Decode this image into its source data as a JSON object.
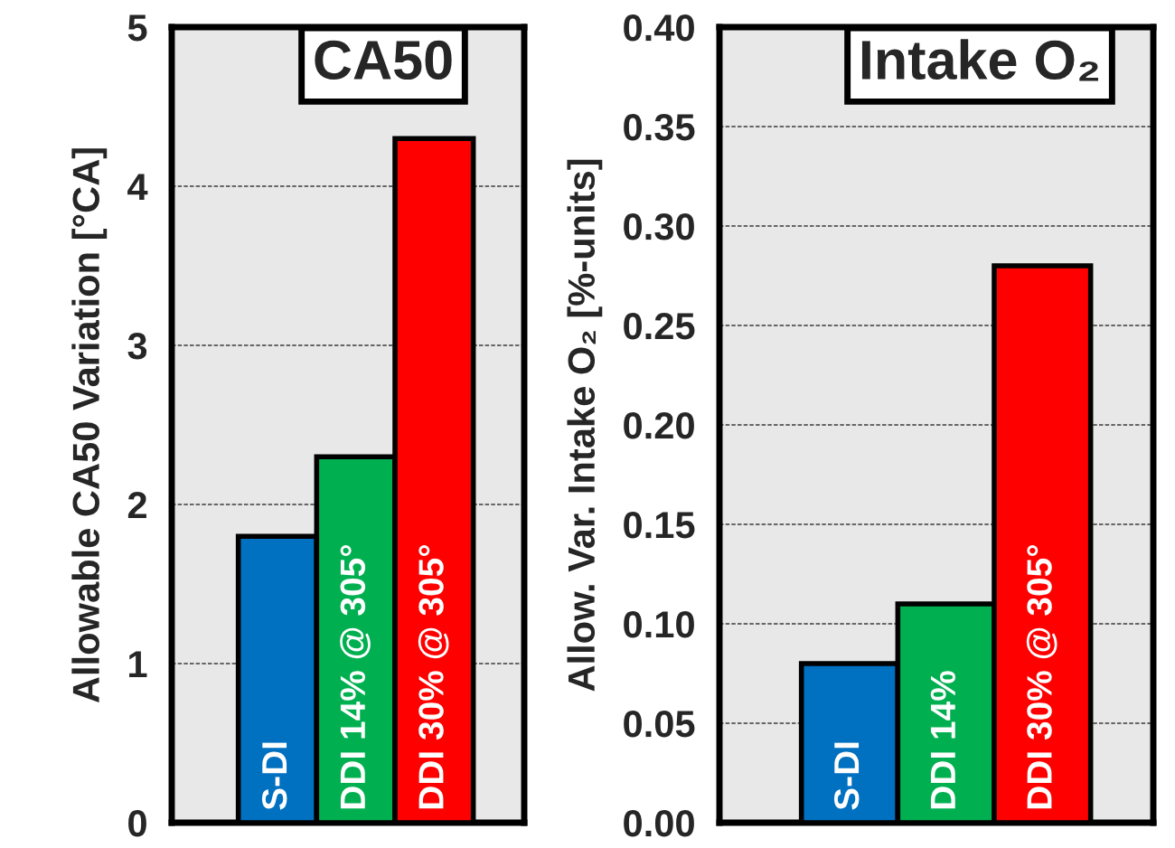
{
  "chart_data": [
    {
      "type": "bar",
      "title": "CA50",
      "ylabel": "Allowable CA50 Variation [°CA]",
      "categories": [
        "S-DI",
        "DDI 14% @ 305°",
        "DDI 30% @ 305°"
      ],
      "values": [
        1.8,
        2.3,
        4.3
      ],
      "colors": [
        "#0070c0",
        "#00b050",
        "#ff0000"
      ],
      "ylim": [
        0,
        5
      ],
      "yticks": [
        0,
        1,
        2,
        3,
        4,
        5
      ],
      "grid": "y"
    },
    {
      "type": "bar",
      "title": "Intake O₂",
      "ylabel": "Allow. Var. Intake O₂ [%-units]",
      "categories": [
        "S-DI",
        "DDI 14%",
        "DDI 30% @ 305°"
      ],
      "values": [
        0.08,
        0.11,
        0.28
      ],
      "colors": [
        "#0070c0",
        "#00b050",
        "#ff0000"
      ],
      "ylim": [
        0,
        0.4
      ],
      "yticks": [
        {
          "value": 0,
          "label": "0.00"
        },
        {
          "value": 0.05,
          "label": "0.05"
        },
        {
          "value": 0.1,
          "label": "0.10"
        },
        {
          "value": 0.15,
          "label": "0.15"
        },
        {
          "value": 0.2,
          "label": "0.20"
        },
        {
          "value": 0.25,
          "label": "0.25"
        },
        {
          "value": 0.3,
          "label": "0.30"
        },
        {
          "value": 0.35,
          "label": "0.35"
        },
        {
          "value": 0.4,
          "label": "0.40"
        }
      ],
      "grid": "y"
    }
  ]
}
